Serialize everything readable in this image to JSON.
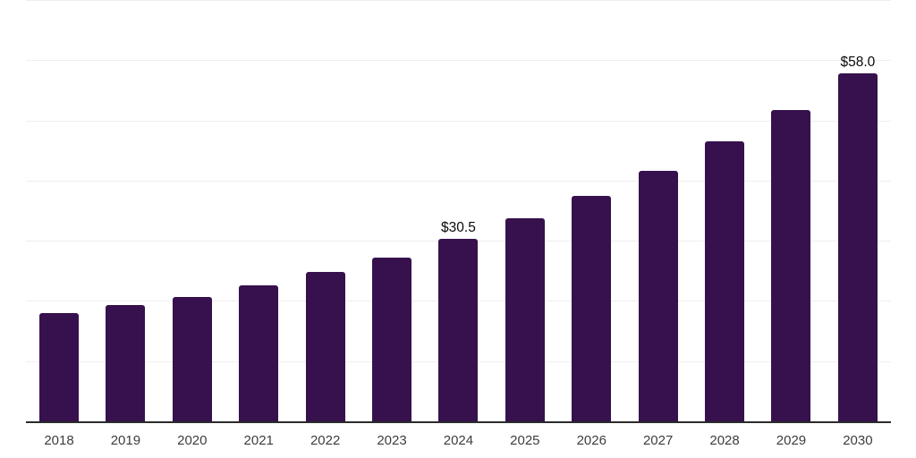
{
  "chart_data": {
    "type": "bar",
    "title": "",
    "xlabel": "",
    "ylabel": "",
    "categories": [
      "2018",
      "2019",
      "2020",
      "2021",
      "2022",
      "2023",
      "2024",
      "2025",
      "2026",
      "2027",
      "2028",
      "2029",
      "2030"
    ],
    "values": [
      18.1,
      19.5,
      20.8,
      22.8,
      25.0,
      27.3,
      30.5,
      33.9,
      37.6,
      41.8,
      46.6,
      51.9,
      58.0
    ],
    "data_labels": [
      "",
      "",
      "",
      "",
      "",
      "",
      "$30.5",
      "",
      "",
      "",
      "",
      "",
      "$58.0"
    ],
    "ylim": [
      0,
      70
    ],
    "gridline_step": 10,
    "grid": true,
    "legend": false,
    "colors": {
      "bar": "#36114d",
      "gridline": "#efefef",
      "axis_line": "#2b2b2b",
      "tick_label": "#3d3d3d",
      "data_label": "#0a0a0a",
      "background": "#ffffff"
    }
  }
}
